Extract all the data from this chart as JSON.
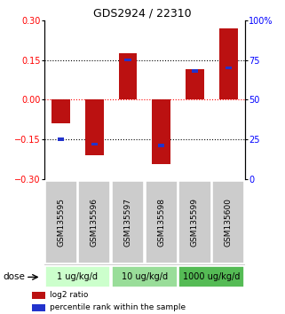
{
  "title": "GDS2924 / 22310",
  "samples": [
    "GSM135595",
    "GSM135596",
    "GSM135597",
    "GSM135598",
    "GSM135599",
    "GSM135600"
  ],
  "log2_ratio": [
    -0.09,
    -0.21,
    0.175,
    -0.245,
    0.115,
    0.27
  ],
  "percentile_rank": [
    25,
    22,
    75,
    21,
    68,
    70
  ],
  "ylim_left": [
    -0.3,
    0.3
  ],
  "ylim_right": [
    0,
    100
  ],
  "yticks_left": [
    -0.3,
    -0.15,
    0,
    0.15,
    0.3
  ],
  "yticks_right": [
    0,
    25,
    50,
    75,
    100
  ],
  "ytick_labels_right": [
    "0",
    "25",
    "50",
    "75",
    "100%"
  ],
  "hlines_dotted": [
    -0.15,
    0.15
  ],
  "hline_red": 0.0,
  "dose_groups": [
    {
      "label": "1 ug/kg/d",
      "samples": [
        0,
        1
      ],
      "color": "#ccffcc"
    },
    {
      "label": "10 ug/kg/d",
      "samples": [
        2,
        3
      ],
      "color": "#99dd99"
    },
    {
      "label": "1000 ug/kg/d",
      "samples": [
        4,
        5
      ],
      "color": "#55bb55"
    }
  ],
  "bar_color_red": "#bb1111",
  "bar_color_blue": "#2233cc",
  "bar_width": 0.55,
  "blue_square_size": 0.012,
  "bg_plot": "#ffffff",
  "bg_sample_box": "#cccccc",
  "legend_red": "log2 ratio",
  "legend_blue": "percentile rank within the sample",
  "dose_label": "dose",
  "title_fontsize": 9,
  "tick_fontsize": 7,
  "sample_fontsize": 6.5,
  "dose_fontsize": 7,
  "legend_fontsize": 6.5
}
